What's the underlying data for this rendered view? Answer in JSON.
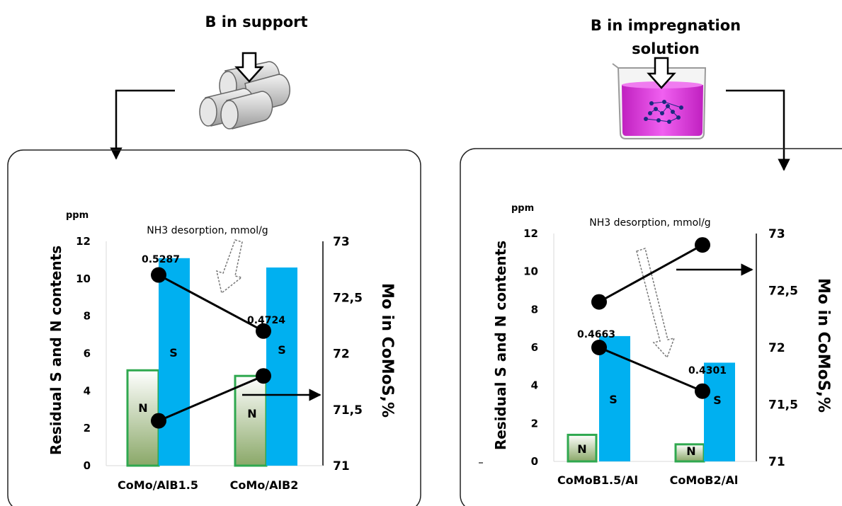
{
  "headers": {
    "left": "B in support",
    "right_line1": "B in impregnation",
    "right_line2": "solution"
  },
  "chart_data": [
    {
      "type": "bar",
      "categories": [
        "CoMo/AlB1.5",
        "CoMo/AlB2"
      ],
      "series": [
        {
          "name": "N",
          "values": [
            5.1,
            4.8
          ]
        },
        {
          "name": "S",
          "values": [
            11.1,
            10.6
          ]
        }
      ],
      "ylabel": "Residual S and N contents",
      "yunit": "ppm",
      "ylim": [
        0,
        12
      ],
      "yticks": [
        "0",
        "2",
        "4",
        "6",
        "8",
        "10",
        "12"
      ],
      "right_axis": {
        "label": "Mo in CoMoS,%",
        "ticks": [
          "71",
          "71,5",
          "72",
          "72,5",
          "73"
        ],
        "ylim": [
          71,
          73
        ],
        "mo_values": [
          71.4,
          71.8
        ]
      },
      "nh3_label": "NH3 desorption, mmol/g",
      "nh3_values": [
        10.2,
        7.2
      ],
      "nh3_point_labels": [
        "0.5287",
        "0.4724"
      ]
    },
    {
      "type": "bar",
      "categories": [
        "CoMoB1.5/Al",
        "CoMoB2/Al"
      ],
      "series": [
        {
          "name": "N",
          "values": [
            1.4,
            0.9
          ]
        },
        {
          "name": "S",
          "values": [
            6.6,
            5.2
          ]
        }
      ],
      "ylabel": "Residual S and N contents",
      "yunit": "ppm",
      "ylim": [
        0,
        12
      ],
      "yticks": [
        "0",
        "2",
        "4",
        "6",
        "8",
        "10",
        "12"
      ],
      "right_axis": {
        "label": "Mo in CoMoS,%",
        "ticks": [
          "71",
          "71,5",
          "72",
          "72,5",
          "73"
        ],
        "ylim": [
          71,
          73
        ],
        "mo_values": [
          72.4,
          72.9
        ]
      },
      "nh3_label": "NH3 desorption, mmol/g",
      "nh3_values": [
        6.0,
        3.7
      ],
      "nh3_point_labels": [
        "0.4663",
        "0.4301"
      ]
    }
  ],
  "colors": {
    "s_bar": "#00b0f0",
    "n_bar_border": "#2fa84f",
    "n_bar_top": "#ffffff",
    "n_bar_bottom": "#8aa868",
    "beaker_liquid": "#e040d8"
  }
}
